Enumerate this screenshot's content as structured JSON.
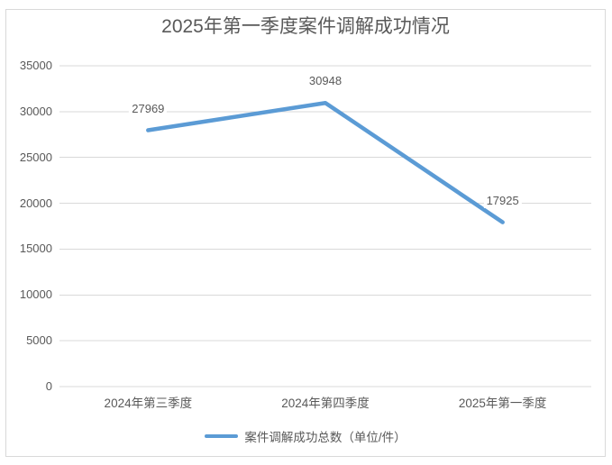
{
  "chart_data": {
    "type": "line",
    "title": "2025年第一季度案件调解成功情况",
    "categories": [
      "2024年第三季度",
      "2024年第四季度",
      "2025年第一季度"
    ],
    "series": [
      {
        "name": "案件调解成功总数（单位/件）",
        "values": [
          27969,
          30948,
          17925
        ]
      }
    ],
    "xlabel": "",
    "ylabel": "",
    "ylim": [
      0,
      35000
    ],
    "yticks": [
      0,
      5000,
      10000,
      15000,
      20000,
      25000,
      30000,
      35000
    ],
    "grid": "horizontal",
    "data_labels_shown": true,
    "legend_position": "bottom",
    "colors": {
      "line": "#5B9BD5",
      "gridline": "#D9D9D9",
      "border": "#D9D9D9",
      "text": "#595959",
      "background": "#FFFFFF"
    }
  }
}
